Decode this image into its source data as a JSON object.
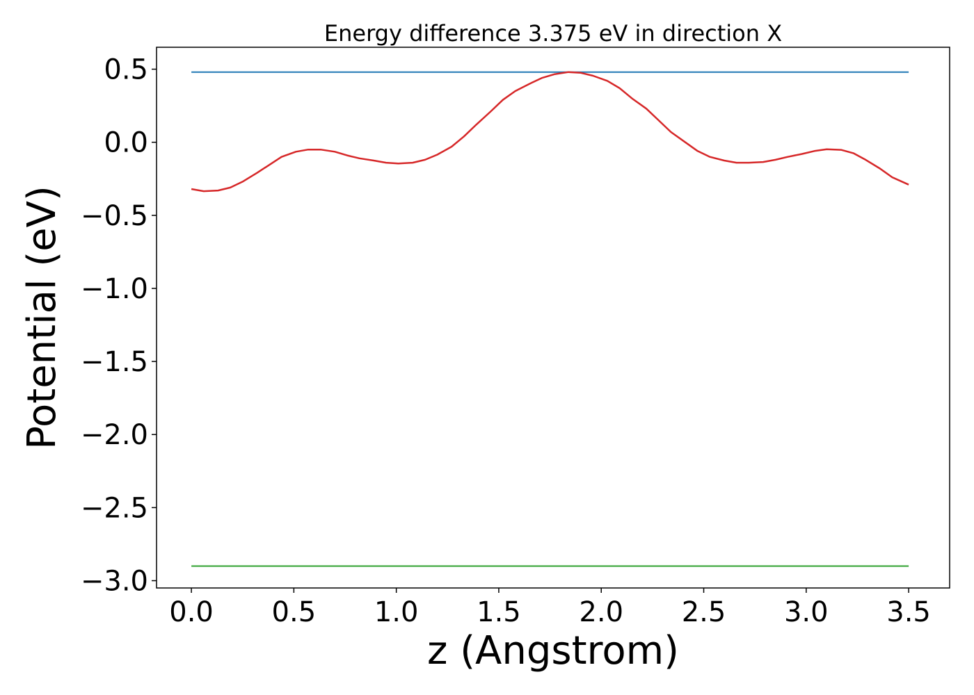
{
  "chart_data": {
    "type": "line",
    "title": "Energy difference 3.375 eV in direction X",
    "xlabel": "z (Angstrom)",
    "ylabel": "Potential (eV)",
    "xlim": [
      -0.17,
      3.7
    ],
    "ylim": [
      -3.05,
      0.65
    ],
    "xticks": [
      0.0,
      0.5,
      1.0,
      1.5,
      2.0,
      2.5,
      3.0,
      3.5
    ],
    "xtick_labels": [
      "0.0",
      "0.5",
      "1.0",
      "1.5",
      "2.0",
      "2.5",
      "3.0",
      "3.5"
    ],
    "yticks": [
      0.5,
      0.0,
      -0.5,
      -1.0,
      -1.5,
      -2.0,
      -2.5,
      -3.0
    ],
    "ytick_labels": [
      "0.5",
      "0.0",
      "−0.5",
      "−1.0",
      "−1.5",
      "−2.0",
      "−2.5",
      "−3.0"
    ],
    "grid": false,
    "series": [
      {
        "color": "#1f77b4",
        "x": [
          0.0,
          3.5
        ],
        "y": [
          0.48,
          0.48
        ]
      },
      {
        "color": "#d62728",
        "x": [
          0.0,
          0.06,
          0.13,
          0.19,
          0.25,
          0.32,
          0.38,
          0.44,
          0.51,
          0.57,
          0.63,
          0.7,
          0.76,
          0.82,
          0.89,
          0.95,
          1.01,
          1.08,
          1.14,
          1.2,
          1.27,
          1.33,
          1.39,
          1.46,
          1.52,
          1.58,
          1.65,
          1.71,
          1.77,
          1.84,
          1.9,
          1.96,
          2.03,
          2.09,
          2.15,
          2.22,
          2.28,
          2.34,
          2.41,
          2.47,
          2.53,
          2.6,
          2.66,
          2.72,
          2.79,
          2.85,
          2.91,
          2.98,
          3.04,
          3.1,
          3.17,
          3.23,
          3.29,
          3.36,
          3.42,
          3.5
        ],
        "y": [
          -0.32,
          -0.335,
          -0.33,
          -0.31,
          -0.27,
          -0.21,
          -0.155,
          -0.1,
          -0.065,
          -0.05,
          -0.05,
          -0.065,
          -0.09,
          -0.11,
          -0.125,
          -0.14,
          -0.145,
          -0.14,
          -0.12,
          -0.085,
          -0.03,
          0.04,
          0.12,
          0.21,
          0.29,
          0.35,
          0.4,
          0.44,
          0.465,
          0.48,
          0.475,
          0.455,
          0.42,
          0.37,
          0.3,
          0.23,
          0.15,
          0.07,
          0.0,
          -0.06,
          -0.1,
          -0.125,
          -0.14,
          -0.14,
          -0.135,
          -0.12,
          -0.1,
          -0.08,
          -0.06,
          -0.048,
          -0.052,
          -0.075,
          -0.12,
          -0.18,
          -0.24,
          -0.29
        ]
      },
      {
        "color": "#2ca02c",
        "x": [
          0.0,
          3.5
        ],
        "y": [
          -2.9,
          -2.9
        ]
      }
    ]
  }
}
